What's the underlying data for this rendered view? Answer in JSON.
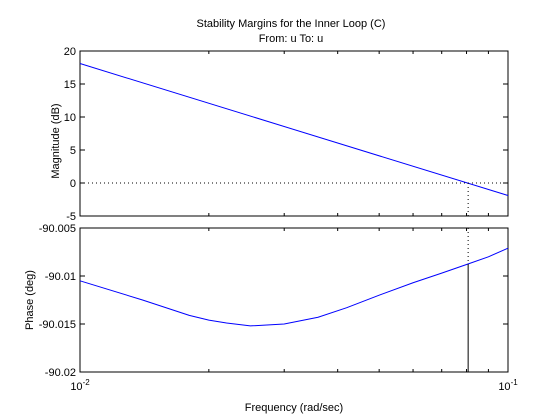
{
  "chart_data": {
    "type": "line",
    "title": "Stability Margins for the Inner Loop (C)",
    "subtitle": "From: u  To: u",
    "xlabel": "Frequency  (rad/sec)",
    "x_scale": "log",
    "xlim": [
      0.01,
      0.1
    ],
    "x_ticks": [
      {
        "value": 0.01,
        "base": "10",
        "exp": "-2"
      },
      {
        "value": 0.1,
        "base": "10",
        "exp": "-1"
      }
    ],
    "grid": false,
    "line_color": "#0000ff",
    "magnitude": {
      "ylabel": "Magnitude (dB)",
      "ylim": [
        -5,
        20
      ],
      "yticks": [
        "-5",
        "0",
        "5",
        "10",
        "15",
        "20"
      ],
      "x": [
        0.01,
        0.1
      ],
      "values": [
        18.1,
        -1.9
      ],
      "reference_line_db": 0
    },
    "phase": {
      "ylabel": "Phase (deg)",
      "ylim": [
        -90.02,
        -90.005
      ],
      "yticks": [
        "-90.02",
        "-90.015",
        "-90.01",
        "-90.005"
      ],
      "x": [
        0.01,
        0.014,
        0.018,
        0.02,
        0.022,
        0.025,
        0.03,
        0.036,
        0.042,
        0.05,
        0.06,
        0.07,
        0.08,
        0.09,
        0.1
      ],
      "values": [
        -90.0105,
        -90.0125,
        -90.0141,
        -90.0146,
        -90.0149,
        -90.0152,
        -90.015,
        -90.0143,
        -90.0133,
        -90.012,
        -90.0107,
        -90.0097,
        -90.0088,
        -90.008,
        -90.0071
      ]
    },
    "crossover_frequency": 0.0807
  }
}
